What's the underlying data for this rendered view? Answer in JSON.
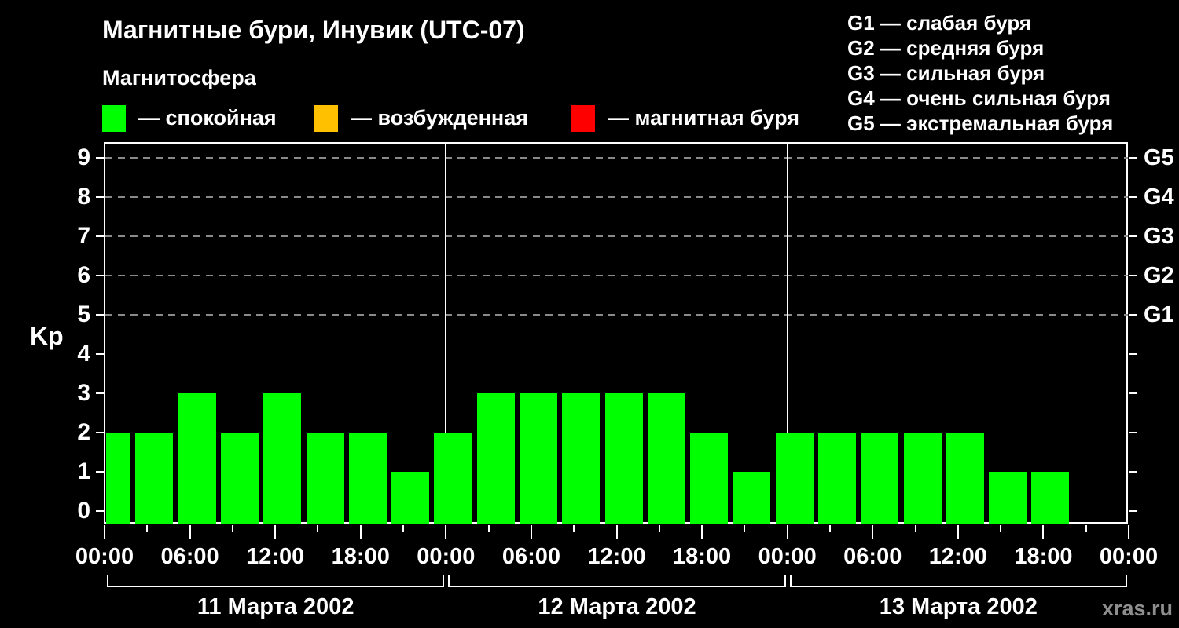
{
  "title": "Магнитные бури, Инувик (UTC-07)",
  "subtitle": "Магнитосфера",
  "legend": {
    "items": [
      {
        "name": "quiet",
        "label": "— спокойная",
        "color": "#00ff00"
      },
      {
        "name": "excited",
        "label": "— возбужденная",
        "color": "#ffc000"
      },
      {
        "name": "storm",
        "label": "— магнитная буря",
        "color": "#ff0000"
      }
    ]
  },
  "storm_scale_legend": {
    "items": [
      "G1 — слабая буря",
      "G2 — средняя буря",
      "G3 — сильная буря",
      "G4 — очень сильная буря",
      "G5 — экстремальная буря"
    ]
  },
  "watermark": "xras.ru",
  "chart_data": {
    "type": "bar",
    "title": "Магнитные бури, Инувик (UTC-07)",
    "ylabel": "Kp",
    "ylim": [
      0,
      9
    ],
    "yticks": [
      0,
      1,
      2,
      3,
      4,
      5,
      6,
      7,
      8,
      9
    ],
    "grid_kp_levels": [
      5,
      6,
      7,
      8,
      9
    ],
    "right_axis": [
      {
        "label": "G1",
        "kp": 5
      },
      {
        "label": "G2",
        "kp": 6
      },
      {
        "label": "G3",
        "kp": 7
      },
      {
        "label": "G4",
        "kp": 8
      },
      {
        "label": "G5",
        "kp": 9
      }
    ],
    "bar_color": "#00ff00",
    "interval_hours": 3,
    "total_hours": 72,
    "xticks": [
      {
        "hour": 0,
        "label": "00:00"
      },
      {
        "hour": 6,
        "label": "06:00"
      },
      {
        "hour": 12,
        "label": "12:00"
      },
      {
        "hour": 18,
        "label": "18:00"
      },
      {
        "hour": 24,
        "label": "00:00"
      },
      {
        "hour": 30,
        "label": "06:00"
      },
      {
        "hour": 36,
        "label": "12:00"
      },
      {
        "hour": 42,
        "label": "18:00"
      },
      {
        "hour": 48,
        "label": "00:00"
      },
      {
        "hour": 54,
        "label": "06:00"
      },
      {
        "hour": 60,
        "label": "12:00"
      },
      {
        "hour": 66,
        "label": "18:00"
      },
      {
        "hour": 72,
        "label": "00:00"
      }
    ],
    "days": [
      {
        "date_label": "11 Марта 2002",
        "values": [
          2,
          2,
          3,
          2,
          3,
          2,
          2,
          1
        ]
      },
      {
        "date_label": "12 Марта 2002",
        "values": [
          2,
          3,
          3,
          3,
          3,
          3,
          2,
          1
        ]
      },
      {
        "date_label": "13 Марта 2002",
        "values": [
          2,
          2,
          2,
          2,
          2,
          1,
          1,
          null
        ]
      }
    ]
  }
}
